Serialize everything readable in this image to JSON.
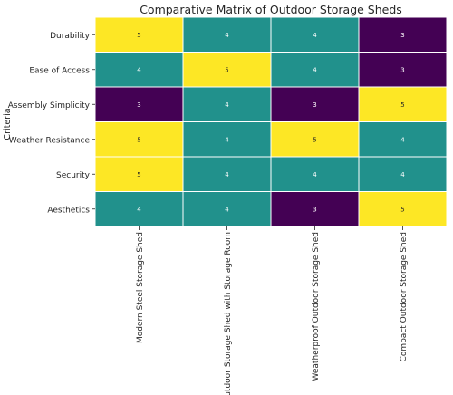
{
  "chart_data": {
    "type": "heatmap",
    "title": "Comparative Matrix of Outdoor Storage Sheds",
    "ylabel": "Criteria",
    "xlabel": "",
    "rows": [
      "Durability",
      "Ease of Access",
      "Assembly Simplicity",
      "Weather Resistance",
      "Security",
      "Aesthetics"
    ],
    "columns": [
      "Modern Steel Storage Shed",
      "Outdoor Storage Shed with Storage Room",
      "Weatherproof Outdoor Storage Shed",
      "Compact Outdoor Storage Shed"
    ],
    "values": [
      [
        5,
        4,
        4,
        3
      ],
      [
        4,
        5,
        4,
        3
      ],
      [
        3,
        4,
        3,
        5
      ],
      [
        5,
        4,
        5,
        4
      ],
      [
        5,
        4,
        4,
        4
      ],
      [
        4,
        4,
        3,
        5
      ]
    ],
    "colormap": {
      "3": "#440154",
      "4": "#21918c",
      "5": "#fde725"
    },
    "label_colors": {
      "3": "#ffffff",
      "4": "#ffffff",
      "5": "#262626"
    },
    "colorbar": false,
    "grid": false
  }
}
